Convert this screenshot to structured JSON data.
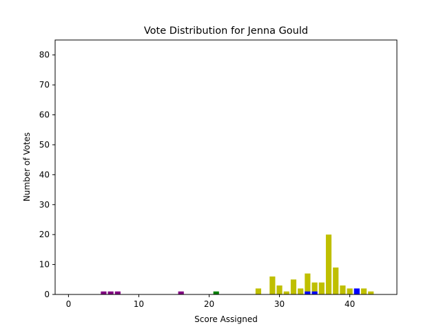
{
  "chart_data": {
    "type": "bar",
    "title": "Vote Distribution for Jenna Gould",
    "xlabel": "Score Assigned",
    "ylabel": "Number of Votes",
    "xlim": [
      -1.9,
      46.7
    ],
    "ylim": [
      0,
      85
    ],
    "xticks": [
      0,
      10,
      20,
      30,
      40
    ],
    "yticks": [
      0,
      10,
      20,
      30,
      40,
      50,
      60,
      70,
      80
    ],
    "grid": false,
    "colors": {
      "purple": "#800080",
      "green": "#008000",
      "olive": "#bfbf00",
      "blue": "#0000ff"
    },
    "bars": [
      {
        "x": 5,
        "value": 1,
        "color": "purple"
      },
      {
        "x": 6,
        "value": 1,
        "color": "purple"
      },
      {
        "x": 7,
        "value": 1,
        "color": "purple"
      },
      {
        "x": 16,
        "value": 1,
        "color": "purple"
      },
      {
        "x": 21,
        "value": 1,
        "color": "green"
      },
      {
        "x": 27,
        "value": 2,
        "color": "olive"
      },
      {
        "x": 29,
        "value": 6,
        "color": "olive"
      },
      {
        "x": 30,
        "value": 3,
        "color": "olive"
      },
      {
        "x": 31,
        "value": 1,
        "color": "olive"
      },
      {
        "x": 32,
        "value": 5,
        "color": "olive"
      },
      {
        "x": 33,
        "value": 2,
        "color": "olive"
      },
      {
        "x": 34,
        "value": 7,
        "color": "olive"
      },
      {
        "x": 34,
        "value": 1,
        "color": "blue"
      },
      {
        "x": 35,
        "value": 4,
        "color": "olive"
      },
      {
        "x": 35,
        "value": 1,
        "color": "blue"
      },
      {
        "x": 36,
        "value": 4,
        "color": "olive"
      },
      {
        "x": 37,
        "value": 20,
        "color": "olive"
      },
      {
        "x": 38,
        "value": 9,
        "color": "olive"
      },
      {
        "x": 39,
        "value": 3,
        "color": "olive"
      },
      {
        "x": 40,
        "value": 2,
        "color": "olive"
      },
      {
        "x": 41,
        "value": 2,
        "color": "blue"
      },
      {
        "x": 42,
        "value": 2,
        "color": "olive"
      },
      {
        "x": 43,
        "value": 1,
        "color": "olive"
      }
    ]
  }
}
